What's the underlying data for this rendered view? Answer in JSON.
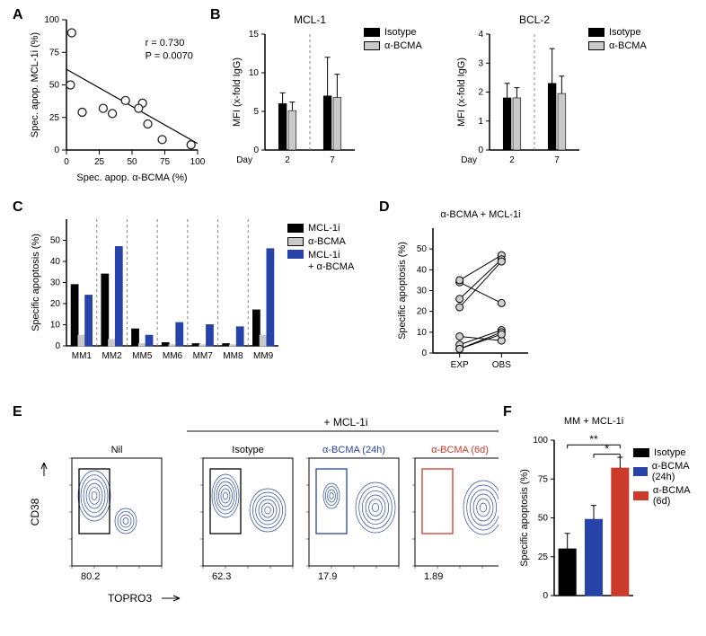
{
  "panelA": {
    "label": "A",
    "type": "scatter",
    "title": "",
    "xlabel": "Spec. apop. α-BCMA (%)",
    "ylabel": "Spec. apop. MCL-1i (%)",
    "xlim": [
      0,
      100
    ],
    "ylim": [
      0,
      100
    ],
    "xticks": [
      0,
      25,
      50,
      75,
      100
    ],
    "yticks": [
      0,
      25,
      50,
      75,
      100
    ],
    "points": [
      [
        4,
        90
      ],
      [
        3,
        50
      ],
      [
        12,
        29
      ],
      [
        28,
        32
      ],
      [
        35,
        28
      ],
      [
        45,
        38
      ],
      [
        58,
        36
      ],
      [
        55,
        32
      ],
      [
        62,
        20
      ],
      [
        73,
        8
      ],
      [
        95,
        4
      ]
    ],
    "marker_fill": "#ffffff",
    "marker_stroke": "#222222",
    "marker_radius": 4.5,
    "fit_line": {
      "x1": 0,
      "y1": 62,
      "x2": 100,
      "y2": 5
    },
    "annotation": {
      "r": "r = 0.730",
      "p": "P = 0.0070"
    },
    "label_fontsize": 11
  },
  "panelB": {
    "label": "B",
    "titles": [
      "MCL-1",
      "BCL-2"
    ],
    "type": "bar",
    "ylabel": "MFI (x-fold IgG)",
    "xcat_label": "Day",
    "categories": [
      "2",
      "7"
    ],
    "series": [
      {
        "name": "Isotype",
        "color": "#000000",
        "mcl1": [
          6.0,
          7.0
        ],
        "mcl1_err": [
          1.4,
          5.0
        ],
        "bcl2": [
          1.8,
          2.3
        ],
        "bcl2_err": [
          0.5,
          1.2
        ]
      },
      {
        "name": "α-BCMA",
        "color": "#c9c9c9",
        "mcl1": [
          5.1,
          6.8
        ],
        "mcl1_err": [
          1.1,
          3.0
        ],
        "bcl2": [
          1.8,
          1.95
        ],
        "bcl2_err": [
          0.35,
          0.6
        ]
      }
    ],
    "ylim_mcl1": [
      0,
      15
    ],
    "yticks_mcl1": [
      0,
      5,
      10,
      15
    ],
    "ylim_bcl2": [
      0,
      4
    ],
    "yticks_bcl2": [
      0,
      1,
      2,
      3,
      4
    ],
    "bar_width": 0.35,
    "divider_color": "#888888",
    "label_fontsize": 11
  },
  "panelC": {
    "label": "C",
    "type": "bar",
    "ylabel": "Specific apoptosis (%)",
    "categories": [
      "MM1",
      "MM2",
      "MM5",
      "MM6",
      "MM7",
      "MM8",
      "MM9"
    ],
    "series": [
      {
        "name": "MCL-1i",
        "color": "#000000",
        "values": [
          29,
          34,
          8,
          1.5,
          1,
          1,
          17
        ]
      },
      {
        "name": "α-BCMA",
        "color": "#c9c9c9",
        "values": [
          5,
          3,
          1,
          0.5,
          0.5,
          0.5,
          5
        ]
      },
      {
        "name": "MCL-1i + α-BCMA",
        "color": "#2742a8",
        "values": [
          24,
          47,
          5,
          11,
          10,
          9,
          46
        ]
      }
    ],
    "ylim": [
      0,
      60
    ],
    "yticks": [
      0,
      10,
      20,
      30,
      40,
      50
    ],
    "bar_width": 0.25,
    "label_fontsize": 11
  },
  "panelD": {
    "label": "D",
    "title": "α-BCMA + MCL-1i",
    "type": "paired-scatter",
    "ylabel": "Specific apoptosis (%)",
    "categories": [
      "EXP",
      "OBS"
    ],
    "pairs": [
      [
        34,
        24
      ],
      [
        35,
        47
      ],
      [
        26,
        45
      ],
      [
        22,
        44
      ],
      [
        8,
        6
      ],
      [
        4,
        11
      ],
      [
        2,
        10
      ],
      [
        2,
        9
      ]
    ],
    "ylim": [
      0,
      60
    ],
    "yticks": [
      0,
      10,
      20,
      30,
      40,
      50
    ],
    "marker_fill": "#d0d0d0",
    "marker_stroke": "#000000",
    "marker_radius": 4,
    "line_color": "#000000",
    "label_fontsize": 11
  },
  "panelE": {
    "label": "E",
    "type": "flowcytometry",
    "header": "+ MCL-1i",
    "xlabel": "TOPRO3",
    "ylabel": "CD38",
    "plots": [
      {
        "title": "Nil",
        "gate_color": "#000000",
        "gate_value": "80.2",
        "pop": "left-major"
      },
      {
        "title": "Isotype",
        "gate_color": "#000000",
        "gate_value": "62.3",
        "pop": "split"
      },
      {
        "title": "α-BCMA (24h)",
        "gate_color": "#2742a8",
        "gate_value": "17.9",
        "pop": "right-major"
      },
      {
        "title": "α-BCMA (6d)",
        "gate_color": "#cc3a2b",
        "gate_value": "1.89",
        "pop": "right-only"
      }
    ],
    "label_fontsize": 11
  },
  "panelF": {
    "label": "F",
    "title": "MM + MCL-1i",
    "type": "bar",
    "ylabel": "Specific apoptosis (%)",
    "categories": [
      "Isotype",
      "α-BCMA (24h)",
      "α-BCMA (6d)"
    ],
    "values": [
      30,
      49,
      82
    ],
    "errors": [
      10,
      9,
      7
    ],
    "colors": [
      "#000000",
      "#2742a8",
      "#cc3a2b"
    ],
    "ylim": [
      0,
      100
    ],
    "yticks": [
      0,
      25,
      50,
      75,
      100
    ],
    "sig": [
      {
        "from": 0,
        "to": 2,
        "label": "**",
        "y": 97
      },
      {
        "from": 1,
        "to": 2,
        "label": "*",
        "y": 91
      }
    ],
    "label_fontsize": 11
  }
}
